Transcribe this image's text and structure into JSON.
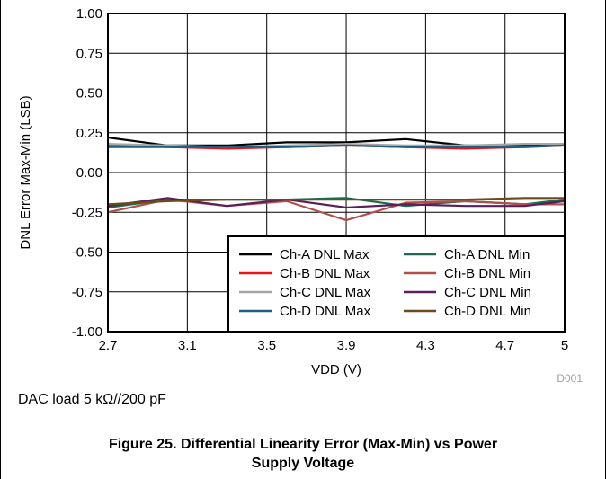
{
  "chart_data": {
    "type": "line",
    "xlabel": "VDD (V)",
    "ylabel": "DNL Error Max-Min (LSB)",
    "xlim": [
      2.7,
      5
    ],
    "ylim": [
      -1,
      1
    ],
    "xticks": [
      "2.7",
      "3.1",
      "3.5",
      "3.9",
      "4.3",
      "4.7",
      "5"
    ],
    "yticks": [
      "1.00",
      "0.75",
      "0.50",
      "0.25",
      "0.00",
      "-0.25",
      "-0.50",
      "-0.75",
      "-1.00"
    ],
    "grid": true,
    "legend_position": "bottom-right",
    "code_label": "D001",
    "x": [
      2.7,
      3.0,
      3.3,
      3.6,
      3.9,
      4.2,
      4.5,
      4.8,
      5.0
    ],
    "series": [
      {
        "name": "Ch-A DNL Max",
        "color": "#000000",
        "values": [
          0.22,
          0.17,
          0.17,
          0.19,
          0.19,
          0.21,
          0.17,
          0.17,
          0.18
        ]
      },
      {
        "name": "Ch-B DNL Max",
        "color": "#e8141c",
        "values": [
          0.17,
          0.16,
          0.15,
          0.16,
          0.17,
          0.16,
          0.15,
          0.16,
          0.17
        ]
      },
      {
        "name": "Ch-C DNL Max",
        "color": "#a6a6a6",
        "values": [
          0.18,
          0.17,
          0.16,
          0.17,
          0.18,
          0.17,
          0.17,
          0.18,
          0.18
        ]
      },
      {
        "name": "Ch-D DNL Max",
        "color": "#1f5f7f",
        "values": [
          0.16,
          0.16,
          0.16,
          0.16,
          0.17,
          0.16,
          0.16,
          0.16,
          0.17
        ]
      },
      {
        "name": "Ch-A DNL Min",
        "color": "#1e6b4c",
        "values": [
          -0.22,
          -0.17,
          -0.17,
          -0.17,
          -0.16,
          -0.21,
          -0.18,
          -0.2,
          -0.17
        ]
      },
      {
        "name": "Ch-B DNL Min",
        "color": "#b0504b",
        "values": [
          -0.25,
          -0.17,
          -0.21,
          -0.18,
          -0.3,
          -0.19,
          -0.18,
          -0.2,
          -0.2
        ]
      },
      {
        "name": "Ch-C DNL Min",
        "color": "#5a1e5a",
        "values": [
          -0.21,
          -0.16,
          -0.21,
          -0.17,
          -0.22,
          -0.2,
          -0.21,
          -0.21,
          -0.18
        ]
      },
      {
        "name": "Ch-D DNL Min",
        "color": "#6b4a1e",
        "values": [
          -0.2,
          -0.18,
          -0.17,
          -0.17,
          -0.17,
          -0.17,
          -0.17,
          -0.16,
          -0.16
        ]
      }
    ]
  },
  "note": "DAC load 5 kΩ//200 pF",
  "caption": {
    "line1": "Figure 25. Differential Linearity Error (Max-Min) vs Power",
    "line2": "Supply Voltage"
  }
}
